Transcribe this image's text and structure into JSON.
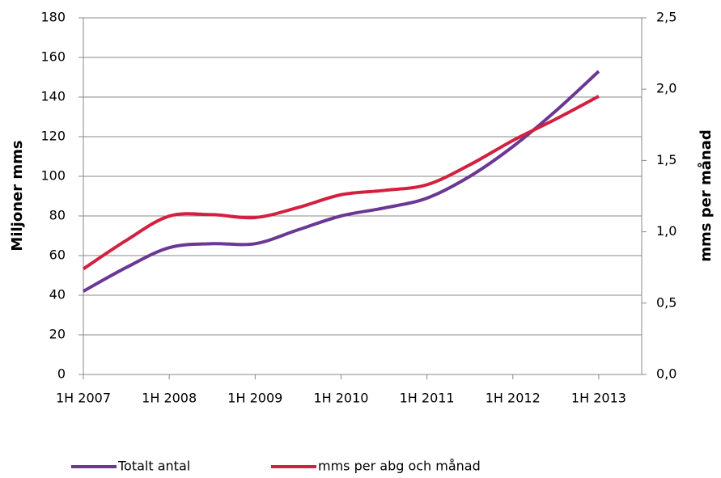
{
  "chart_data": {
    "type": "line",
    "y_label": "Miljoner mms",
    "y2_label": "mms per månad",
    "categories": [
      "1H 2007",
      null,
      "1H 2008",
      null,
      "1H 2009",
      null,
      "1H 2010",
      null,
      "1H 2011",
      null,
      "1H 2012",
      null,
      "1H 2013",
      null
    ],
    "series": [
      {
        "name": "Totalt antal",
        "color": "#6a3894",
        "values": [
          42,
          54,
          64,
          66,
          66,
          73,
          80,
          84,
          89,
          100,
          115,
          133,
          153,
          null
        ]
      },
      {
        "name": "mms per abg och månad",
        "color": "#d42040",
        "axis": "y2",
        "values": [
          0.74,
          0.94,
          1.11,
          1.12,
          1.1,
          1.17,
          1.26,
          1.29,
          1.33,
          1.47,
          1.64,
          1.79,
          1.95,
          null
        ]
      }
    ],
    "ylim": [
      0,
      180
    ],
    "yticks": [
      0,
      20,
      40,
      60,
      80,
      100,
      120,
      140,
      160,
      180
    ],
    "y2lim": [
      0,
      2.5
    ],
    "y2ticks": [
      {
        "value": 0,
        "label": "0,0"
      },
      {
        "value": 0.5,
        "label": "0,5"
      },
      {
        "value": 1,
        "label": "1,0"
      },
      {
        "value": 1.5,
        "label": "1,5"
      },
      {
        "value": 2,
        "label": "2,0"
      },
      {
        "value": 2.5,
        "label": "2,5"
      }
    ],
    "grid": true,
    "smooth": true,
    "legend": "bottom"
  }
}
